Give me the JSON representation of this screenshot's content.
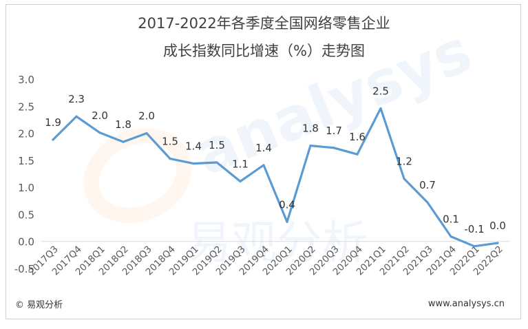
{
  "title": {
    "line1": "2017-2022年各季度全国网络零售企业",
    "line2": "成长指数同比增速（%）走势图"
  },
  "footer": {
    "left": "© 易观分析",
    "right": "www.analysys.cn"
  },
  "watermark": {
    "brand": "analysys",
    "text": "易观分析"
  },
  "colors": {
    "line": "#5B9BD5",
    "axis_text": "#595959",
    "label_text": "#333333",
    "axis_line": "#d9d9d9"
  },
  "chart_data": {
    "type": "line",
    "categories": [
      "2017Q3",
      "2017Q4",
      "2018Q1",
      "2018Q2",
      "2018Q3",
      "2018Q4",
      "2019Q1",
      "2019Q2",
      "2019Q3",
      "2019Q4",
      "2020Q1",
      "2020Q2",
      "2020Q3",
      "2020Q4",
      "2021Q1",
      "2021Q2",
      "2021Q3",
      "2021Q4",
      "2022Q1",
      "2022Q2"
    ],
    "series": [
      {
        "values": [
          1.88,
          2.31,
          2.01,
          1.84,
          2.0,
          1.53,
          1.44,
          1.46,
          1.11,
          1.41,
          0.36,
          1.77,
          1.73,
          1.61,
          2.46,
          1.16,
          0.72,
          0.09,
          -0.09,
          -0.03
        ],
        "labels": [
          "1.9",
          "2.3",
          "2.0",
          "1.8",
          "2.0",
          "1.5",
          "1.4",
          "1.5",
          "1.1",
          "1.4",
          "0.4",
          "1.8",
          "1.7",
          "1.6",
          "2.5",
          "1.2",
          "0.7",
          "0.1",
          "-0.1",
          "0.0"
        ]
      }
    ],
    "yticks": [
      "3.0",
      "2.5",
      "2.0",
      "1.5",
      "1.0",
      "0.5",
      "0.0",
      "-0.5"
    ],
    "ylim": [
      -0.5,
      3.0
    ],
    "grid": false,
    "legend": "none"
  }
}
